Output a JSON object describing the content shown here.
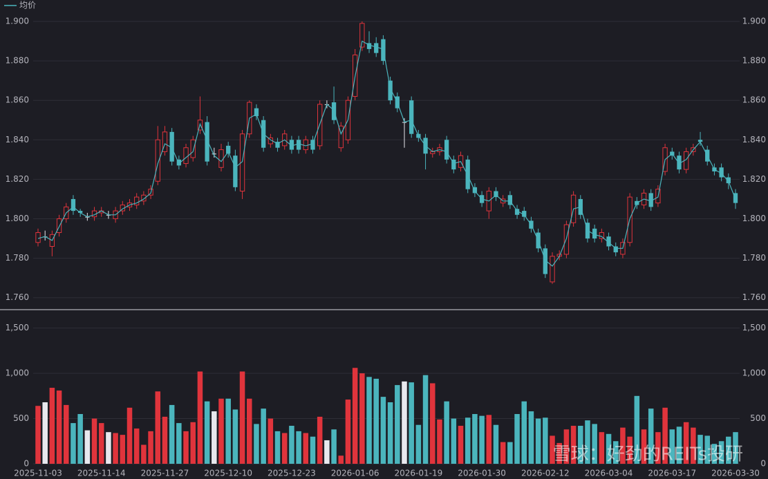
{
  "chart_data": [
    {
      "type": "candlestick",
      "legend": "均价",
      "up_color": "#e0343c",
      "down_color": "#4bb5bd",
      "flat_color": "#e8e8ee",
      "open": [
        1.788,
        1.791,
        1.786,
        1.793,
        1.8,
        1.81,
        1.804,
        1.801,
        1.801,
        1.803,
        1.802,
        1.8,
        1.804,
        1.806,
        1.807,
        1.809,
        1.812,
        1.819,
        1.834,
        1.844,
        1.83,
        1.828,
        1.831,
        1.845,
        1.849,
        1.833,
        1.826,
        1.837,
        1.832,
        1.814,
        1.843,
        1.856,
        1.85,
        1.838,
        1.839,
        1.837,
        1.84,
        1.84,
        1.835,
        1.84,
        1.837,
        1.858,
        1.859,
        1.836,
        1.84,
        1.862,
        1.887,
        1.889,
        1.889,
        1.891,
        1.87,
        1.862,
        1.849,
        1.86,
        1.843,
        1.841,
        1.833,
        1.834,
        1.84,
        1.83,
        1.826,
        1.83,
        1.816,
        1.812,
        1.804,
        1.814,
        1.808,
        1.812,
        1.805,
        1.804,
        1.799,
        1.793,
        1.785,
        1.768,
        1.781,
        1.782,
        1.798,
        1.81,
        1.798,
        1.795,
        1.79,
        1.791,
        1.786,
        1.782,
        1.788,
        1.809,
        1.807,
        1.813,
        1.808,
        1.824,
        1.834,
        1.832,
        1.825,
        1.834,
        1.84,
        1.835,
        1.826,
        1.826,
        1.821,
        1.813
      ],
      "high": [
        1.795,
        1.794,
        1.794,
        1.802,
        1.808,
        1.812,
        1.805,
        1.803,
        1.806,
        1.806,
        1.804,
        1.806,
        1.809,
        1.81,
        1.813,
        1.814,
        1.817,
        1.847,
        1.847,
        1.846,
        1.832,
        1.838,
        1.842,
        1.862,
        1.852,
        1.836,
        1.838,
        1.839,
        1.835,
        1.845,
        1.86,
        1.858,
        1.852,
        1.843,
        1.841,
        1.845,
        1.842,
        1.842,
        1.842,
        1.842,
        1.86,
        1.86,
        1.867,
        1.849,
        1.862,
        1.886,
        1.9,
        1.895,
        1.892,
        1.893,
        1.872,
        1.864,
        1.851,
        1.862,
        1.845,
        1.843,
        1.836,
        1.838,
        1.842,
        1.832,
        1.834,
        1.832,
        1.818,
        1.814,
        1.816,
        1.816,
        1.812,
        1.814,
        1.807,
        1.806,
        1.801,
        1.795,
        1.787,
        1.783,
        1.784,
        1.799,
        1.814,
        1.812,
        1.8,
        1.797,
        1.795,
        1.793,
        1.788,
        1.79,
        1.813,
        1.811,
        1.815,
        1.815,
        1.817,
        1.838,
        1.836,
        1.834,
        1.836,
        1.838,
        1.844,
        1.837,
        1.828,
        1.828,
        1.823,
        1.815
      ],
      "low": [
        1.786,
        1.789,
        1.781,
        1.791,
        1.798,
        1.802,
        1.801,
        1.799,
        1.799,
        1.801,
        1.8,
        1.798,
        1.802,
        1.804,
        1.805,
        1.807,
        1.81,
        1.817,
        1.832,
        1.827,
        1.825,
        1.826,
        1.829,
        1.843,
        1.827,
        1.831,
        1.824,
        1.831,
        1.814,
        1.81,
        1.841,
        1.85,
        1.834,
        1.836,
        1.834,
        1.835,
        1.833,
        1.833,
        1.833,
        1.833,
        1.835,
        1.856,
        1.848,
        1.834,
        1.838,
        1.86,
        1.885,
        1.884,
        1.882,
        1.878,
        1.858,
        1.854,
        1.836,
        1.841,
        1.839,
        1.825,
        1.831,
        1.832,
        1.828,
        1.823,
        1.824,
        1.813,
        1.811,
        1.806,
        1.8,
        1.809,
        1.806,
        1.805,
        1.8,
        1.799,
        1.793,
        1.783,
        1.77,
        1.767,
        1.779,
        1.78,
        1.796,
        1.8,
        1.788,
        1.788,
        1.788,
        1.784,
        1.781,
        1.78,
        1.786,
        1.805,
        1.805,
        1.804,
        1.806,
        1.822,
        1.83,
        1.823,
        1.823,
        1.832,
        1.837,
        1.827,
        1.822,
        1.819,
        1.815,
        1.805
      ],
      "close": [
        1.793,
        1.791,
        1.792,
        1.8,
        1.806,
        1.804,
        1.803,
        1.801,
        1.804,
        1.804,
        1.802,
        1.804,
        1.807,
        1.808,
        1.811,
        1.812,
        1.815,
        1.84,
        1.844,
        1.829,
        1.827,
        1.836,
        1.84,
        1.85,
        1.829,
        1.833,
        1.835,
        1.833,
        1.816,
        1.843,
        1.859,
        1.852,
        1.836,
        1.841,
        1.836,
        1.843,
        1.835,
        1.835,
        1.84,
        1.835,
        1.858,
        1.858,
        1.85,
        1.847,
        1.86,
        1.883,
        1.899,
        1.886,
        1.884,
        1.88,
        1.86,
        1.856,
        1.849,
        1.843,
        1.841,
        1.833,
        1.834,
        1.836,
        1.83,
        1.825,
        1.832,
        1.815,
        1.813,
        1.808,
        1.814,
        1.811,
        1.81,
        1.807,
        1.802,
        1.801,
        1.795,
        1.785,
        1.772,
        1.781,
        1.782,
        1.797,
        1.812,
        1.802,
        1.79,
        1.79,
        1.793,
        1.786,
        1.783,
        1.788,
        1.811,
        1.807,
        1.813,
        1.806,
        1.815,
        1.836,
        1.832,
        1.825,
        1.834,
        1.836,
        1.839,
        1.829,
        1.824,
        1.821,
        1.818,
        1.808
      ],
      "series": [
        {
          "name": "均价",
          "color": "#4bb5bd",
          "values": [
            1.79,
            1.791,
            1.789,
            1.796,
            1.803,
            1.806,
            1.803,
            1.801,
            1.802,
            1.804,
            1.802,
            1.802,
            1.805,
            1.807,
            1.808,
            1.81,
            1.813,
            1.828,
            1.838,
            1.836,
            1.828,
            1.831,
            1.834,
            1.848,
            1.84,
            1.832,
            1.829,
            1.834,
            1.826,
            1.829,
            1.851,
            1.853,
            1.843,
            1.84,
            1.838,
            1.84,
            1.837,
            1.838,
            1.837,
            1.838,
            1.848,
            1.858,
            1.855,
            1.843,
            1.85,
            1.872,
            1.89,
            1.888,
            1.887,
            1.886,
            1.866,
            1.859,
            1.849,
            1.85,
            1.842,
            1.837,
            1.834,
            1.835,
            1.834,
            1.828,
            1.829,
            1.822,
            1.814,
            1.81,
            1.809,
            1.812,
            1.809,
            1.809,
            1.804,
            1.802,
            1.797,
            1.789,
            1.779,
            1.776,
            1.781,
            1.79,
            1.805,
            1.806,
            1.794,
            1.792,
            1.791,
            1.788,
            1.785,
            1.785,
            1.8,
            1.808,
            1.81,
            1.809,
            1.811,
            1.83,
            1.833,
            1.828,
            1.83,
            1.835,
            1.839,
            1.832,
            1.825,
            1.823,
            1.819,
            1.81
          ]
        }
      ],
      "ylim": [
        1.755,
        1.905
      ],
      "yticks": [
        {
          "value": 1.76,
          "label": "1.760"
        },
        {
          "value": 1.78,
          "label": "1.780"
        },
        {
          "value": 1.8,
          "label": "1.800"
        },
        {
          "value": 1.82,
          "label": "1.820"
        },
        {
          "value": 1.84,
          "label": "1.840"
        },
        {
          "value": 1.86,
          "label": "1.860"
        },
        {
          "value": 1.88,
          "label": "1.880"
        },
        {
          "value": 1.9,
          "label": "1.900"
        }
      ],
      "grid": true
    },
    {
      "type": "bar",
      "categories": [
        "2025-11-03",
        null,
        null,
        null,
        null,
        null,
        null,
        null,
        null,
        "2025-11-14",
        null,
        null,
        null,
        null,
        null,
        null,
        null,
        null,
        "2025-11-27",
        null,
        null,
        null,
        null,
        null,
        null,
        null,
        null,
        "2025-12-10",
        null,
        null,
        null,
        null,
        null,
        null,
        null,
        null,
        "2025-12-23",
        null,
        null,
        null,
        null,
        null,
        null,
        null,
        null,
        "2026-01-06",
        null,
        null,
        null,
        null,
        null,
        null,
        null,
        null,
        "2026-01-19",
        null,
        null,
        null,
        null,
        null,
        null,
        null,
        null,
        "2026-01-30",
        null,
        null,
        null,
        null,
        null,
        null,
        null,
        null,
        "2026-02-12",
        null,
        null,
        null,
        null,
        null,
        null,
        null,
        null,
        "2026-03-04",
        null,
        null,
        null,
        null,
        null,
        null,
        null,
        null,
        "2026-03-17",
        null,
        null,
        null,
        null,
        null,
        null,
        null,
        null,
        "2026-03-30"
      ],
      "values": [
        640,
        680,
        840,
        810,
        650,
        450,
        550,
        370,
        500,
        450,
        350,
        340,
        320,
        620,
        390,
        210,
        360,
        800,
        520,
        650,
        450,
        360,
        460,
        1020,
        690,
        580,
        720,
        720,
        600,
        1020,
        720,
        440,
        610,
        500,
        360,
        340,
        420,
        360,
        340,
        300,
        520,
        260,
        380,
        90,
        710,
        1060,
        1000,
        960,
        940,
        740,
        680,
        870,
        910,
        900,
        430,
        980,
        890,
        490,
        690,
        500,
        420,
        510,
        550,
        530,
        540,
        430,
        240,
        240,
        550,
        690,
        580,
        500,
        510,
        310,
        230,
        380,
        420,
        420,
        480,
        440,
        350,
        330,
        250,
        400,
        300,
        750,
        380,
        610,
        350,
        620,
        380,
        410,
        460,
        400,
        320,
        310,
        220,
        250,
        300,
        350
      ],
      "ylim": [
        0,
        1650
      ],
      "yticks": [
        0,
        500,
        {
          "value": 1000,
          "label": "1,000"
        },
        {
          "value": 1500,
          "label": "1,500"
        }
      ],
      "grid": true
    },
    {
      "watermark": "雪球：好劲的REITs投研"
    }
  ]
}
